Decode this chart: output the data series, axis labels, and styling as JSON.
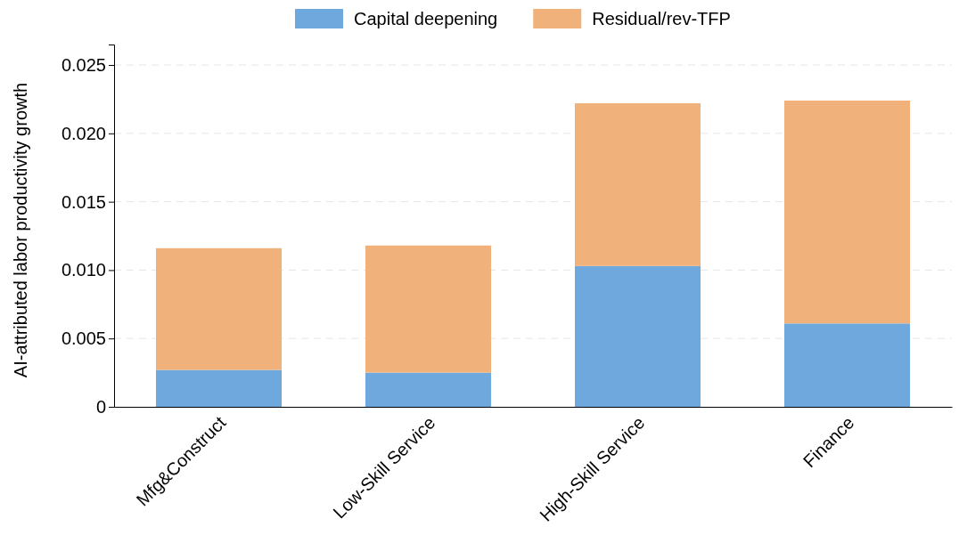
{
  "chart_data": {
    "type": "bar",
    "stacked": true,
    "ylabel": "AI-attributed labor productivity growth",
    "categories": [
      "Mfg&Construct",
      "Low-Skill Service",
      "High-Skill Service",
      "Finance"
    ],
    "series": [
      {
        "name": "Capital deepening",
        "color": "#6fa8dc",
        "values": [
          0.0027,
          0.0025,
          0.0103,
          0.0061
        ]
      },
      {
        "name": "Residual/rev-TFP",
        "color": "#f0b27a",
        "values": [
          0.0089,
          0.0093,
          0.0119,
          0.0163
        ]
      }
    ],
    "ylim": [
      0,
      0.0265
    ],
    "yticks": [
      {
        "value": 0,
        "label": "0"
      },
      {
        "value": 0.005,
        "label": "0.005"
      },
      {
        "value": 0.01,
        "label": "0.010"
      },
      {
        "value": 0.015,
        "label": "0.015"
      },
      {
        "value": 0.02,
        "label": "0.020"
      },
      {
        "value": 0.025,
        "label": "0.025"
      }
    ],
    "grid": "y",
    "legend": "top"
  }
}
